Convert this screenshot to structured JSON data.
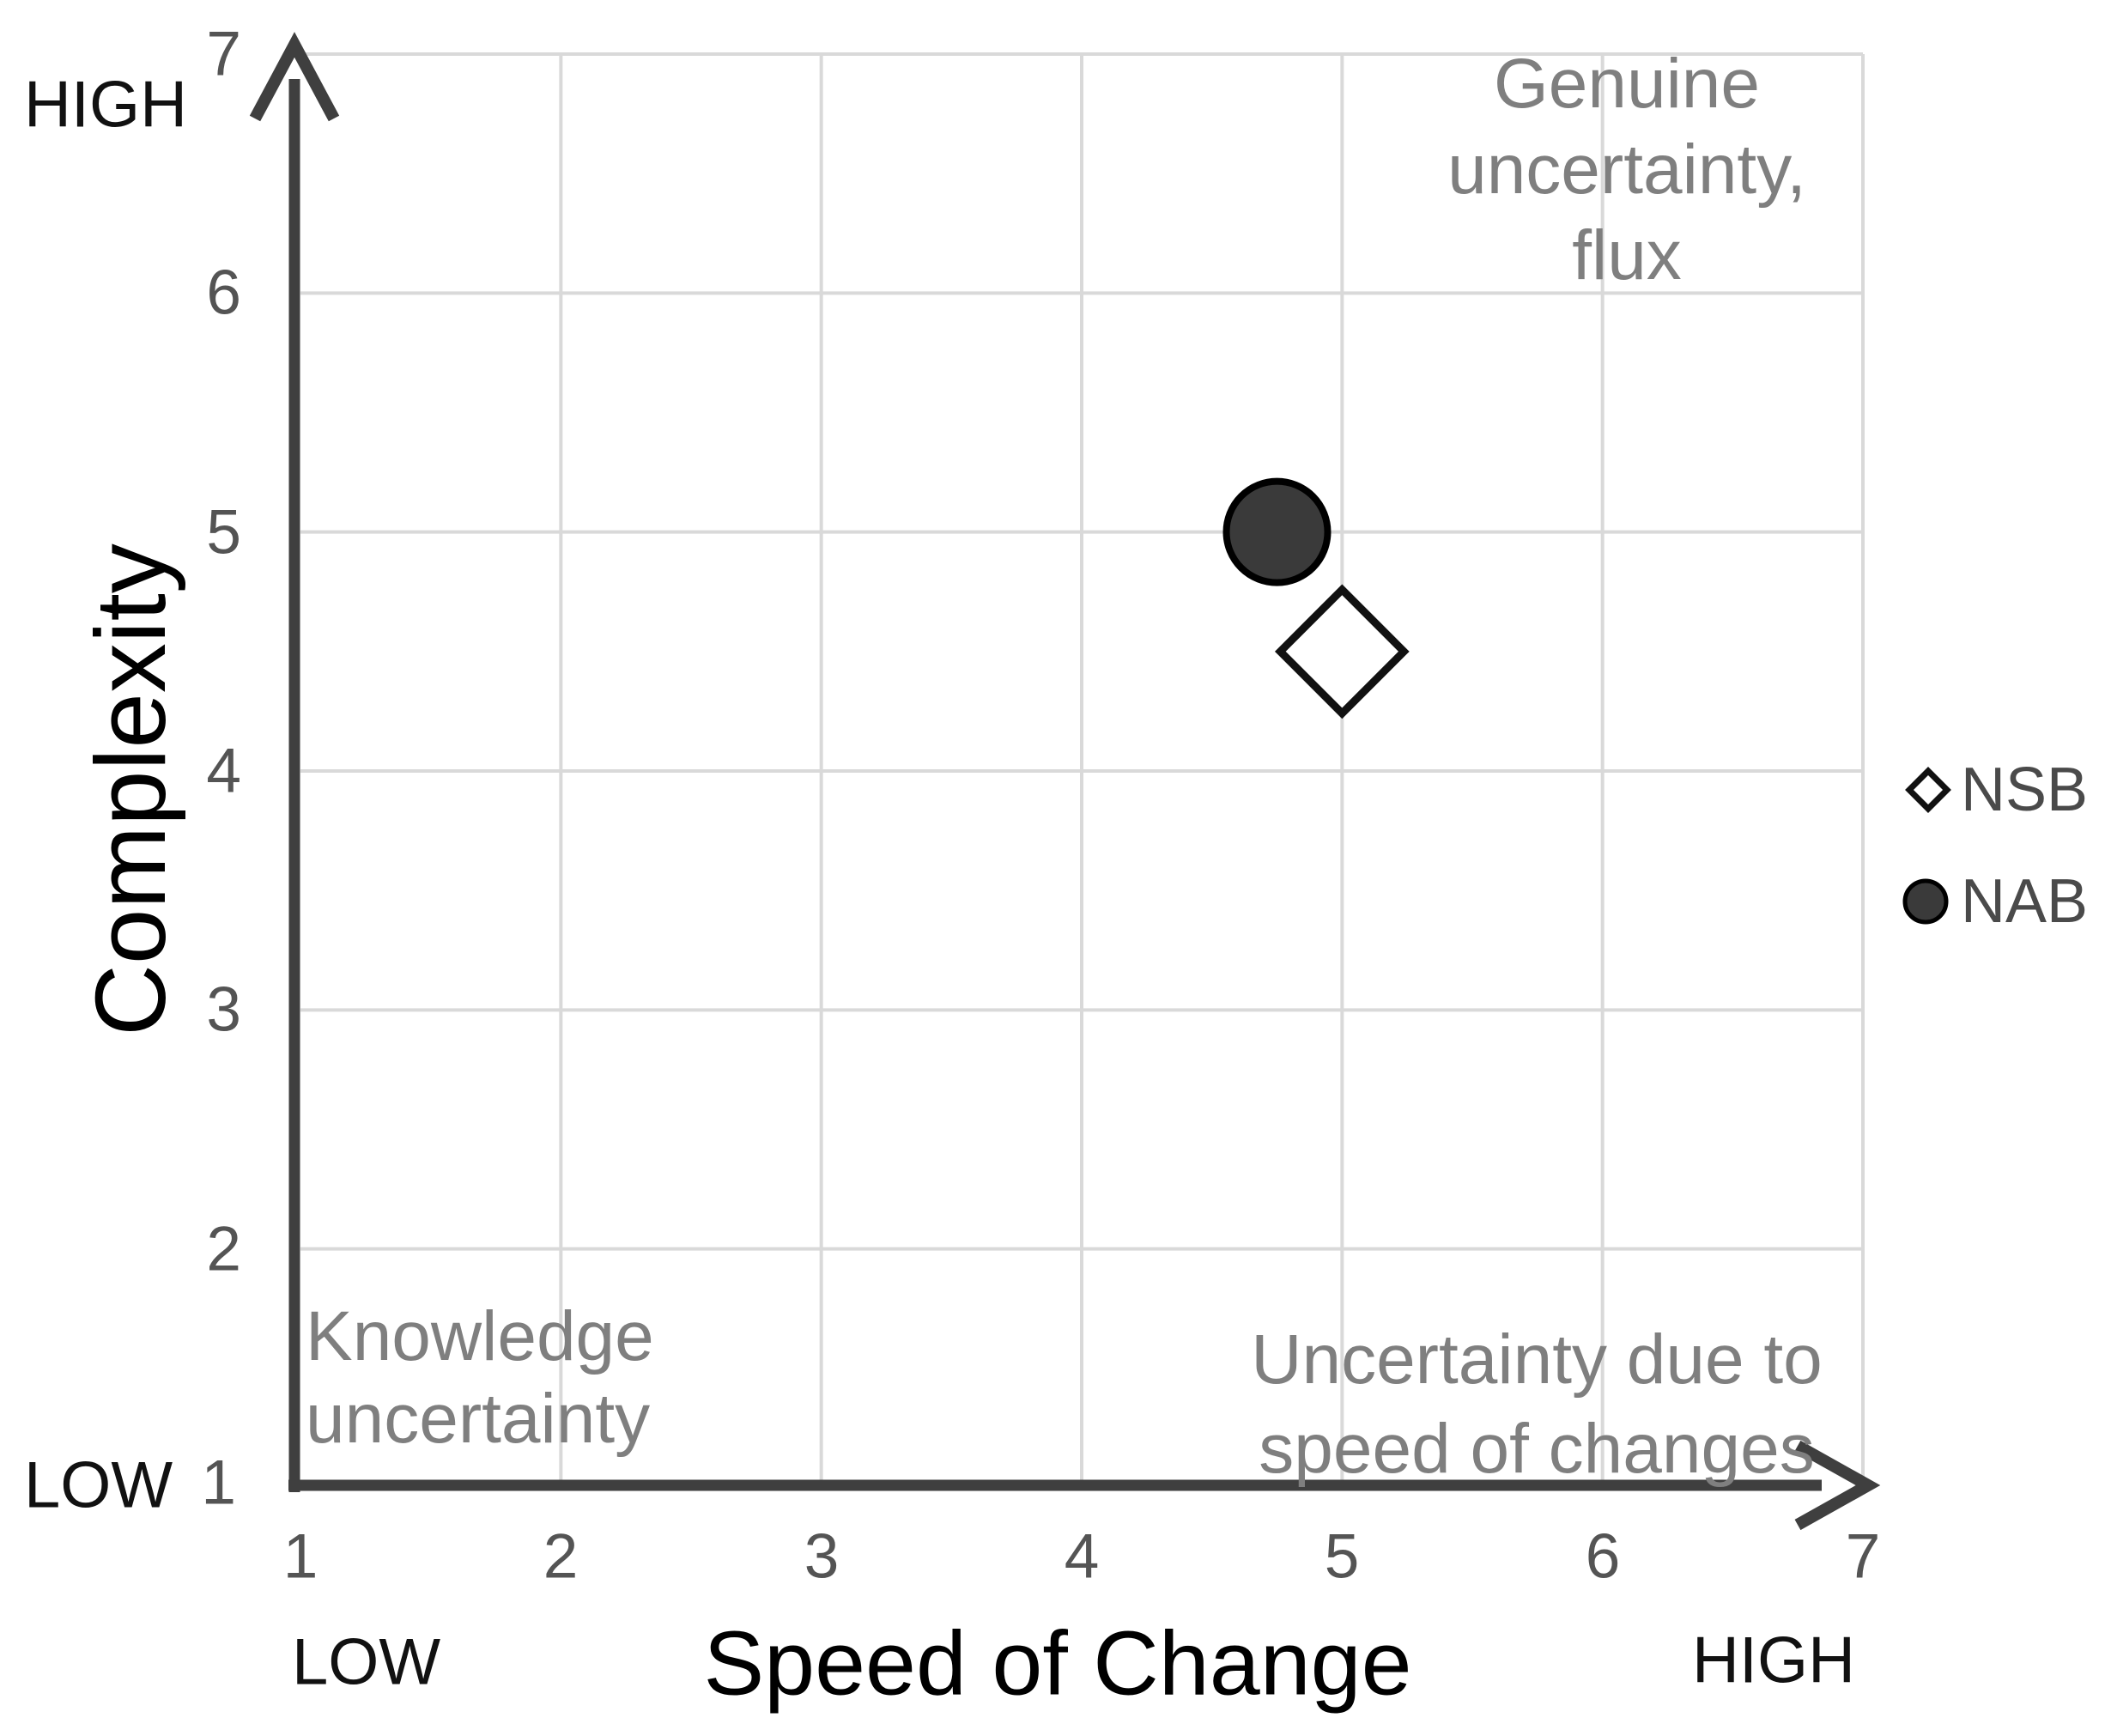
{
  "chart_data": {
    "type": "scatter",
    "x_axis": {
      "label": "Speed of Change",
      "low_label": "LOW",
      "high_label": "HIGH",
      "range": [
        1,
        7
      ],
      "ticks": [
        "1",
        "2",
        "3",
        "4",
        "5",
        "6",
        "7"
      ]
    },
    "y_axis": {
      "label": "Complexity",
      "low_label": "LOW",
      "high_label": "HIGH",
      "range": [
        1,
        7
      ],
      "ticks": [
        "1",
        "2",
        "3",
        "4",
        "5",
        "6",
        "7"
      ]
    },
    "grid": true,
    "legend_position": "right",
    "series": [
      {
        "name": "NSB",
        "marker": "open-diamond",
        "color": "#ffffff",
        "stroke": "#111111",
        "points": [
          [
            5,
            4.5
          ]
        ]
      },
      {
        "name": "NAB",
        "marker": "filled-circle",
        "color": "#3a3a3a",
        "stroke": "#000000",
        "points": [
          [
            4.75,
            5
          ]
        ]
      }
    ],
    "annotations": {
      "top_right": {
        "lines": [
          "Genuine",
          "uncertainty,",
          "flux"
        ],
        "full_text": "Genuine uncertainty, flux"
      },
      "bottom_left": {
        "lines": [
          "Knowledge",
          "uncertainty"
        ],
        "full_text": "Knowledge uncertainty"
      },
      "bottom_right": {
        "lines": [
          "Uncertainty due to",
          "speed of changes"
        ],
        "full_text": "Uncertainty due to speed of changes"
      }
    }
  },
  "legend": {
    "items": [
      {
        "label": "NSB",
        "marker": "open-diamond"
      },
      {
        "label": "NAB",
        "marker": "filled-circle"
      }
    ]
  },
  "colors": {
    "background": "#ffffff",
    "grid": "#d9d9d9",
    "axis": "#3f3f3f",
    "tick_text": "#545454",
    "edge_label_text": "#111111",
    "axis_title_text": "#000000",
    "annotation_text": "#7f7f7f",
    "legend_text": "#4a4a4a",
    "nab_fill": "#3a3a3a",
    "nsb_fill": "#ffffff",
    "marker_stroke": "#000000"
  }
}
